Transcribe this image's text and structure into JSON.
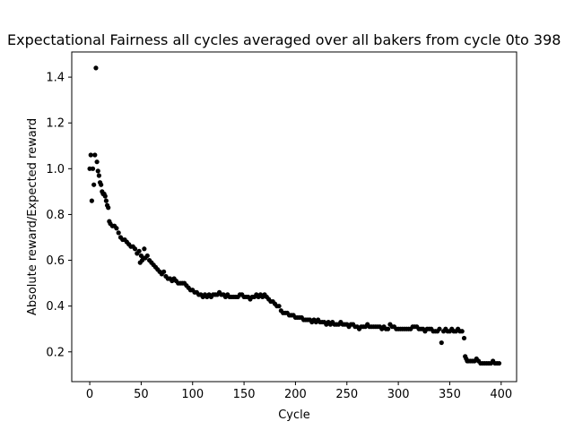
{
  "chart_data": {
    "type": "scatter",
    "title": "Expectational Fairness all cycles averaged over all bakers from cycle 0to 398",
    "xlabel": "Cycle",
    "ylabel": "Absolute reward/Expected reward",
    "xlim": [
      -17.5,
      415
    ],
    "ylim": [
      0.07,
      1.51
    ],
    "xticks": [
      0,
      50,
      100,
      150,
      200,
      250,
      300,
      350,
      400
    ],
    "yticks": [
      0.2,
      0.4,
      0.6,
      0.8,
      1.0,
      1.2,
      1.4
    ],
    "marker_color": "#000000",
    "grid": false,
    "legend": "none",
    "points": [
      [
        0,
        1.0
      ],
      [
        1,
        1.06
      ],
      [
        2,
        0.86
      ],
      [
        3,
        1.0
      ],
      [
        4,
        0.93
      ],
      [
        5,
        1.06
      ],
      [
        6,
        1.44
      ],
      [
        7,
        1.03
      ],
      [
        8,
        0.99
      ],
      [
        9,
        0.97
      ],
      [
        10,
        0.94
      ],
      [
        11,
        0.93
      ],
      [
        12,
        0.9
      ],
      [
        13,
        0.89
      ],
      [
        14,
        0.89
      ],
      [
        15,
        0.88
      ],
      [
        16,
        0.86
      ],
      [
        17,
        0.84
      ],
      [
        18,
        0.83
      ],
      [
        19,
        0.77
      ],
      [
        20,
        0.76
      ],
      [
        22,
        0.75
      ],
      [
        24,
        0.75
      ],
      [
        26,
        0.74
      ],
      [
        28,
        0.72
      ],
      [
        30,
        0.7
      ],
      [
        32,
        0.69
      ],
      [
        34,
        0.69
      ],
      [
        36,
        0.68
      ],
      [
        38,
        0.67
      ],
      [
        40,
        0.66
      ],
      [
        42,
        0.66
      ],
      [
        44,
        0.65
      ],
      [
        46,
        0.63
      ],
      [
        48,
        0.64
      ],
      [
        49,
        0.59
      ],
      [
        50,
        0.62
      ],
      [
        51,
        0.6
      ],
      [
        52,
        0.61
      ],
      [
        53,
        0.65
      ],
      [
        54,
        0.61
      ],
      [
        56,
        0.62
      ],
      [
        58,
        0.6
      ],
      [
        60,
        0.59
      ],
      [
        62,
        0.58
      ],
      [
        64,
        0.57
      ],
      [
        66,
        0.56
      ],
      [
        68,
        0.55
      ],
      [
        70,
        0.54
      ],
      [
        72,
        0.55
      ],
      [
        74,
        0.53
      ],
      [
        76,
        0.52
      ],
      [
        78,
        0.52
      ],
      [
        80,
        0.51
      ],
      [
        82,
        0.52
      ],
      [
        84,
        0.51
      ],
      [
        86,
        0.5
      ],
      [
        88,
        0.5
      ],
      [
        90,
        0.5
      ],
      [
        92,
        0.5
      ],
      [
        94,
        0.49
      ],
      [
        96,
        0.48
      ],
      [
        98,
        0.47
      ],
      [
        100,
        0.47
      ],
      [
        102,
        0.46
      ],
      [
        104,
        0.46
      ],
      [
        106,
        0.45
      ],
      [
        108,
        0.45
      ],
      [
        110,
        0.44
      ],
      [
        112,
        0.45
      ],
      [
        114,
        0.44
      ],
      [
        116,
        0.45
      ],
      [
        118,
        0.44
      ],
      [
        120,
        0.45
      ],
      [
        122,
        0.45
      ],
      [
        124,
        0.45
      ],
      [
        126,
        0.46
      ],
      [
        128,
        0.45
      ],
      [
        130,
        0.45
      ],
      [
        132,
        0.44
      ],
      [
        134,
        0.45
      ],
      [
        136,
        0.44
      ],
      [
        138,
        0.44
      ],
      [
        140,
        0.44
      ],
      [
        142,
        0.44
      ],
      [
        144,
        0.44
      ],
      [
        146,
        0.45
      ],
      [
        148,
        0.45
      ],
      [
        150,
        0.44
      ],
      [
        152,
        0.44
      ],
      [
        154,
        0.44
      ],
      [
        156,
        0.43
      ],
      [
        158,
        0.44
      ],
      [
        160,
        0.44
      ],
      [
        162,
        0.45
      ],
      [
        164,
        0.44
      ],
      [
        166,
        0.45
      ],
      [
        168,
        0.44
      ],
      [
        170,
        0.45
      ],
      [
        172,
        0.44
      ],
      [
        174,
        0.43
      ],
      [
        176,
        0.42
      ],
      [
        178,
        0.42
      ],
      [
        180,
        0.41
      ],
      [
        182,
        0.4
      ],
      [
        184,
        0.4
      ],
      [
        186,
        0.38
      ],
      [
        188,
        0.37
      ],
      [
        190,
        0.37
      ],
      [
        192,
        0.37
      ],
      [
        194,
        0.36
      ],
      [
        196,
        0.36
      ],
      [
        198,
        0.36
      ],
      [
        200,
        0.35
      ],
      [
        202,
        0.35
      ],
      [
        204,
        0.35
      ],
      [
        206,
        0.35
      ],
      [
        208,
        0.34
      ],
      [
        210,
        0.34
      ],
      [
        212,
        0.34
      ],
      [
        214,
        0.34
      ],
      [
        216,
        0.33
      ],
      [
        218,
        0.34
      ],
      [
        220,
        0.33
      ],
      [
        222,
        0.34
      ],
      [
        224,
        0.33
      ],
      [
        226,
        0.33
      ],
      [
        228,
        0.33
      ],
      [
        230,
        0.32
      ],
      [
        232,
        0.33
      ],
      [
        234,
        0.32
      ],
      [
        236,
        0.33
      ],
      [
        238,
        0.32
      ],
      [
        240,
        0.32
      ],
      [
        242,
        0.32
      ],
      [
        244,
        0.33
      ],
      [
        246,
        0.32
      ],
      [
        248,
        0.32
      ],
      [
        250,
        0.32
      ],
      [
        252,
        0.31
      ],
      [
        254,
        0.32
      ],
      [
        256,
        0.32
      ],
      [
        258,
        0.31
      ],
      [
        260,
        0.31
      ],
      [
        262,
        0.3
      ],
      [
        264,
        0.31
      ],
      [
        266,
        0.31
      ],
      [
        268,
        0.31
      ],
      [
        270,
        0.32
      ],
      [
        272,
        0.31
      ],
      [
        274,
        0.31
      ],
      [
        276,
        0.31
      ],
      [
        278,
        0.31
      ],
      [
        280,
        0.31
      ],
      [
        282,
        0.31
      ],
      [
        284,
        0.3
      ],
      [
        286,
        0.31
      ],
      [
        288,
        0.3
      ],
      [
        290,
        0.3
      ],
      [
        292,
        0.32
      ],
      [
        294,
        0.31
      ],
      [
        296,
        0.31
      ],
      [
        298,
        0.3
      ],
      [
        300,
        0.3
      ],
      [
        302,
        0.3
      ],
      [
        304,
        0.3
      ],
      [
        306,
        0.3
      ],
      [
        308,
        0.3
      ],
      [
        310,
        0.3
      ],
      [
        312,
        0.3
      ],
      [
        314,
        0.31
      ],
      [
        316,
        0.31
      ],
      [
        318,
        0.31
      ],
      [
        320,
        0.3
      ],
      [
        322,
        0.3
      ],
      [
        324,
        0.3
      ],
      [
        326,
        0.29
      ],
      [
        328,
        0.3
      ],
      [
        330,
        0.3
      ],
      [
        332,
        0.3
      ],
      [
        334,
        0.29
      ],
      [
        336,
        0.29
      ],
      [
        338,
        0.29
      ],
      [
        340,
        0.3
      ],
      [
        342,
        0.24
      ],
      [
        344,
        0.29
      ],
      [
        346,
        0.3
      ],
      [
        348,
        0.29
      ],
      [
        350,
        0.29
      ],
      [
        352,
        0.3
      ],
      [
        354,
        0.29
      ],
      [
        356,
        0.29
      ],
      [
        358,
        0.3
      ],
      [
        360,
        0.29
      ],
      [
        362,
        0.29
      ],
      [
        364,
        0.26
      ],
      [
        365,
        0.18
      ],
      [
        366,
        0.17
      ],
      [
        367,
        0.16
      ],
      [
        368,
        0.16
      ],
      [
        370,
        0.16
      ],
      [
        372,
        0.16
      ],
      [
        374,
        0.16
      ],
      [
        376,
        0.17
      ],
      [
        378,
        0.16
      ],
      [
        380,
        0.15
      ],
      [
        382,
        0.15
      ],
      [
        384,
        0.15
      ],
      [
        386,
        0.15
      ],
      [
        388,
        0.15
      ],
      [
        390,
        0.15
      ],
      [
        392,
        0.16
      ],
      [
        394,
        0.15
      ],
      [
        396,
        0.15
      ],
      [
        398,
        0.15
      ]
    ]
  }
}
